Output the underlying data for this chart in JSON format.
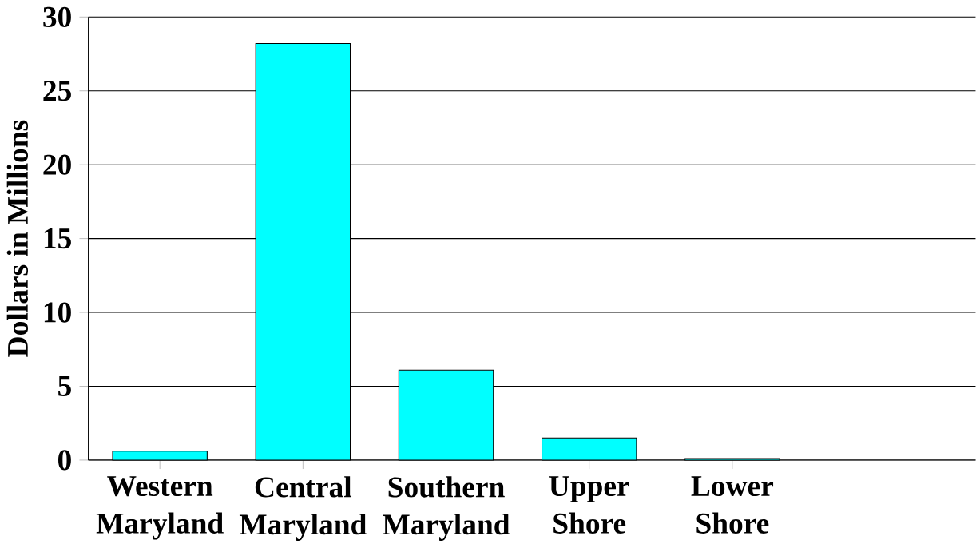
{
  "chart_data": {
    "type": "bar",
    "ylabel": "Dollars in Millions",
    "categories": [
      "Western Maryland",
      "Central Maryland",
      "Southern Maryland",
      "Upper Shore",
      "Lower Shore"
    ],
    "values": [
      0.6,
      28.2,
      6.1,
      1.5,
      0.1
    ],
    "color": "#00ffff",
    "ylim": [
      0,
      30
    ],
    "yticks": [
      0,
      5,
      10,
      15,
      20,
      25,
      30
    ],
    "grid": "y"
  }
}
